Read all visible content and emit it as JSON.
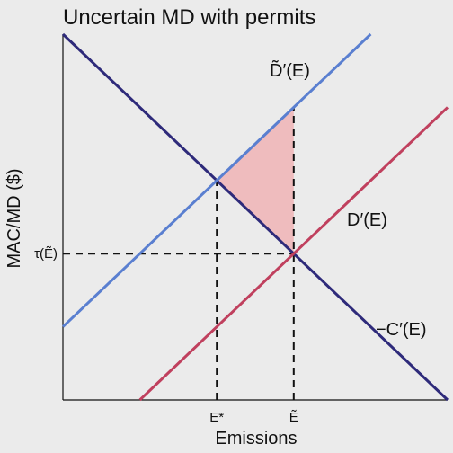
{
  "chart_data": {
    "type": "line",
    "title": "Uncertain MD with permits",
    "xlabel": "Emissions",
    "ylabel": "MAC/MD ($)",
    "xlim": [
      0,
      10
    ],
    "ylim": [
      0,
      10
    ],
    "series": [
      {
        "name": "−C′(E)",
        "color": "#2e2a7a",
        "x": [
          0,
          10
        ],
        "y": [
          10,
          0
        ]
      },
      {
        "name": "D̃′(E)",
        "color": "#5a7fd0",
        "x": [
          0,
          8
        ],
        "y": [
          2,
          10
        ]
      },
      {
        "name": "D′(E)",
        "color": "#c0405e",
        "x": [
          2,
          10
        ],
        "y": [
          0,
          8
        ]
      }
    ],
    "annotations": {
      "x_ticks": [
        {
          "label": "E*",
          "x": 4
        },
        {
          "label": "Ẽ",
          "x": 6
        }
      ],
      "y_ticks": [
        {
          "label": "τ(Ẽ)",
          "y": 4
        }
      ],
      "shaded_region": {
        "color": "#efbcbe",
        "x": [
          4,
          6,
          6
        ],
        "y": [
          6,
          8,
          4
        ]
      }
    },
    "grid": false,
    "legend": "none"
  }
}
